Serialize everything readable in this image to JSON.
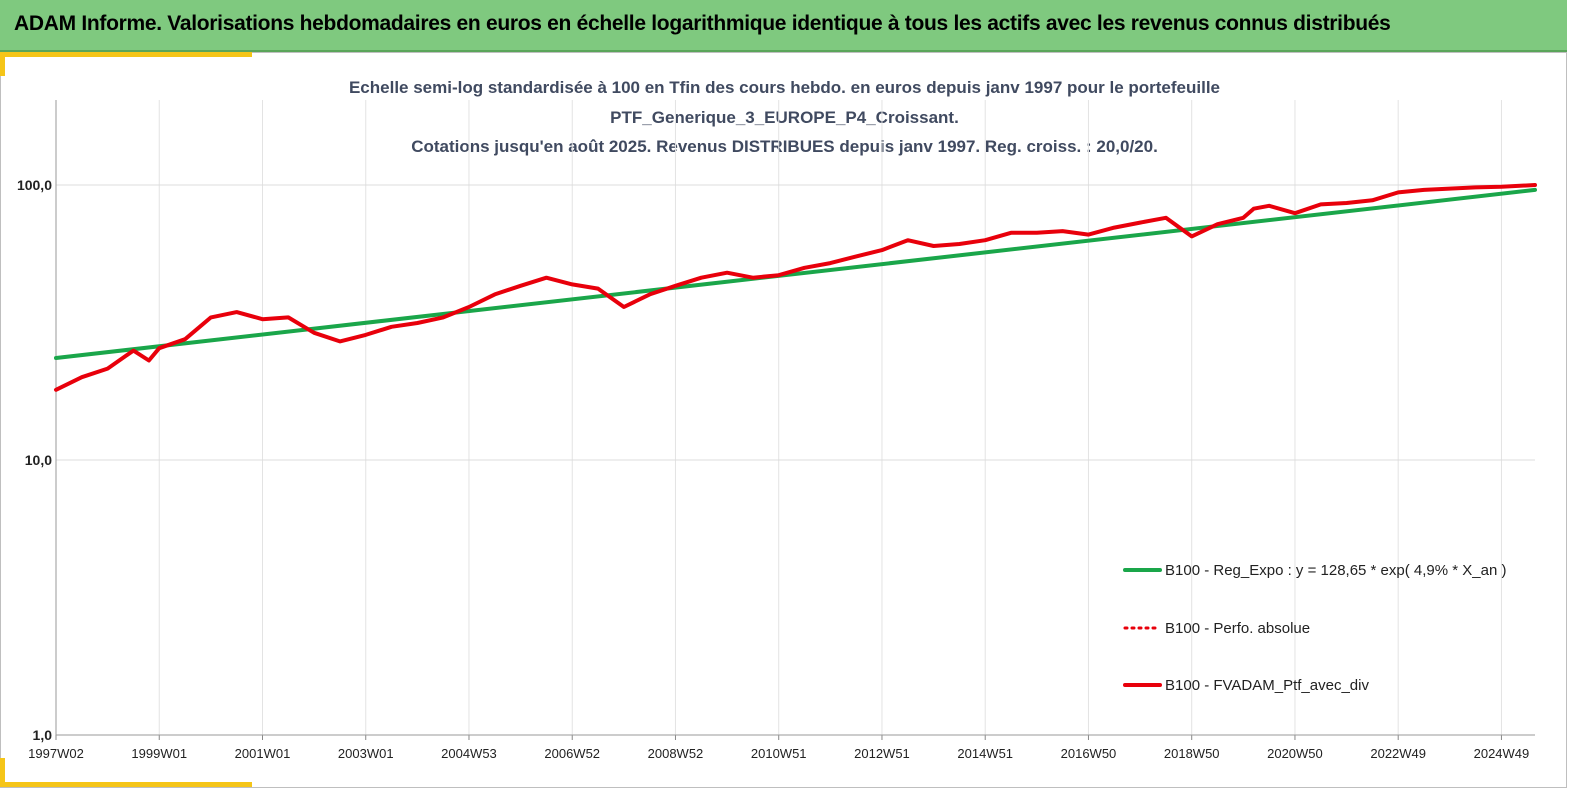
{
  "banner": {
    "title": "ADAM Informe. Valorisations hebdomadaires en euros en échelle logarithmique identique à tous les actifs avec les revenus connus distribués"
  },
  "chart_data": {
    "type": "line",
    "title_lines": [
      "Echelle semi-log standardisée à 100 en Tfin des cours hebdo.  en euros depuis janv 1997 pour le portefeuille",
      "PTF_Generique_3_EUROPE_P4_Croissant.",
      "Cotations jusqu'en août 2025. Revenus DISTRIBUES depuis janv 1997. Reg. croiss. : 20,0/20."
    ],
    "y_scale": "log",
    "ylim": [
      1,
      200
    ],
    "y_ticks": [
      1,
      10,
      100
    ],
    "y_tick_labels": [
      "1,0",
      "10,0",
      "100,0"
    ],
    "xlim": [
      1997.0,
      2025.65
    ],
    "x_ticks": [
      1997.0,
      1999.0,
      2001.0,
      2003.0,
      2005.0,
      2007.0,
      2009.0,
      2011.0,
      2013.0,
      2015.0,
      2017.0,
      2019.0,
      2021.0,
      2023.0,
      2025.0
    ],
    "x_tick_labels": [
      "1997W02",
      "1999W01",
      "2001W01",
      "2003W01",
      "2004W53",
      "2006W52",
      "2008W52",
      "2010W51",
      "2012W51",
      "2014W51",
      "2016W50",
      "2018W50",
      "2020W50",
      "2022W49",
      "2024W49"
    ],
    "grid": true,
    "legend_position": "bottom-right",
    "colors": {
      "regression": "#1aa64a",
      "performance": "#e8000b",
      "fvadam": "#e8000b"
    },
    "series": [
      {
        "name": "B100 - Reg_Expo : y = 128,65 * exp( 4,9% *  X_an )",
        "style": "solid-green",
        "x": [
          1997.0,
          2025.65
        ],
        "y": [
          23.5,
          96.0
        ]
      },
      {
        "name": "B100 - Perfo. absolue",
        "style": "dotted-red",
        "x": [],
        "y": []
      },
      {
        "name": "B100 - FVADAM_Ptf_avec_div",
        "style": "solid-red",
        "x": [
          1997.0,
          1997.5,
          1998.0,
          1998.5,
          1998.8,
          1999.0,
          1999.5,
          2000.0,
          2000.5,
          2001.0,
          2001.5,
          2002.0,
          2002.5,
          2003.0,
          2003.5,
          2004.0,
          2004.5,
          2005.0,
          2005.5,
          2006.0,
          2006.5,
          2007.0,
          2007.5,
          2008.0,
          2008.5,
          2009.0,
          2009.5,
          2010.0,
          2010.5,
          2011.0,
          2011.5,
          2012.0,
          2012.5,
          2013.0,
          2013.5,
          2014.0,
          2014.5,
          2015.0,
          2015.5,
          2016.0,
          2016.5,
          2017.0,
          2017.5,
          2018.0,
          2018.5,
          2019.0,
          2019.5,
          2020.0,
          2020.2,
          2020.5,
          2021.0,
          2021.5,
          2022.0,
          2022.5,
          2023.0,
          2023.5,
          2024.0,
          2024.5,
          2025.0,
          2025.65
        ],
        "y": [
          18.0,
          20.0,
          21.5,
          25.0,
          23.0,
          25.5,
          27.5,
          33.0,
          34.5,
          32.5,
          33.0,
          29.0,
          27.0,
          28.5,
          30.5,
          31.5,
          33.0,
          36.0,
          40.0,
          43.0,
          46.0,
          43.5,
          42.0,
          36.0,
          40.0,
          43.0,
          46.0,
          48.0,
          46.0,
          47.0,
          50.0,
          52.0,
          55.0,
          58.0,
          63.0,
          60.0,
          61.0,
          63.0,
          67.0,
          67.0,
          68.0,
          66.0,
          70.0,
          73.0,
          76.0,
          65.0,
          72.0,
          76.0,
          82.0,
          84.0,
          79.0,
          85.0,
          86.0,
          88.0,
          94.0,
          96.0,
          97.0,
          98.0,
          98.5,
          100.0
        ]
      }
    ]
  }
}
